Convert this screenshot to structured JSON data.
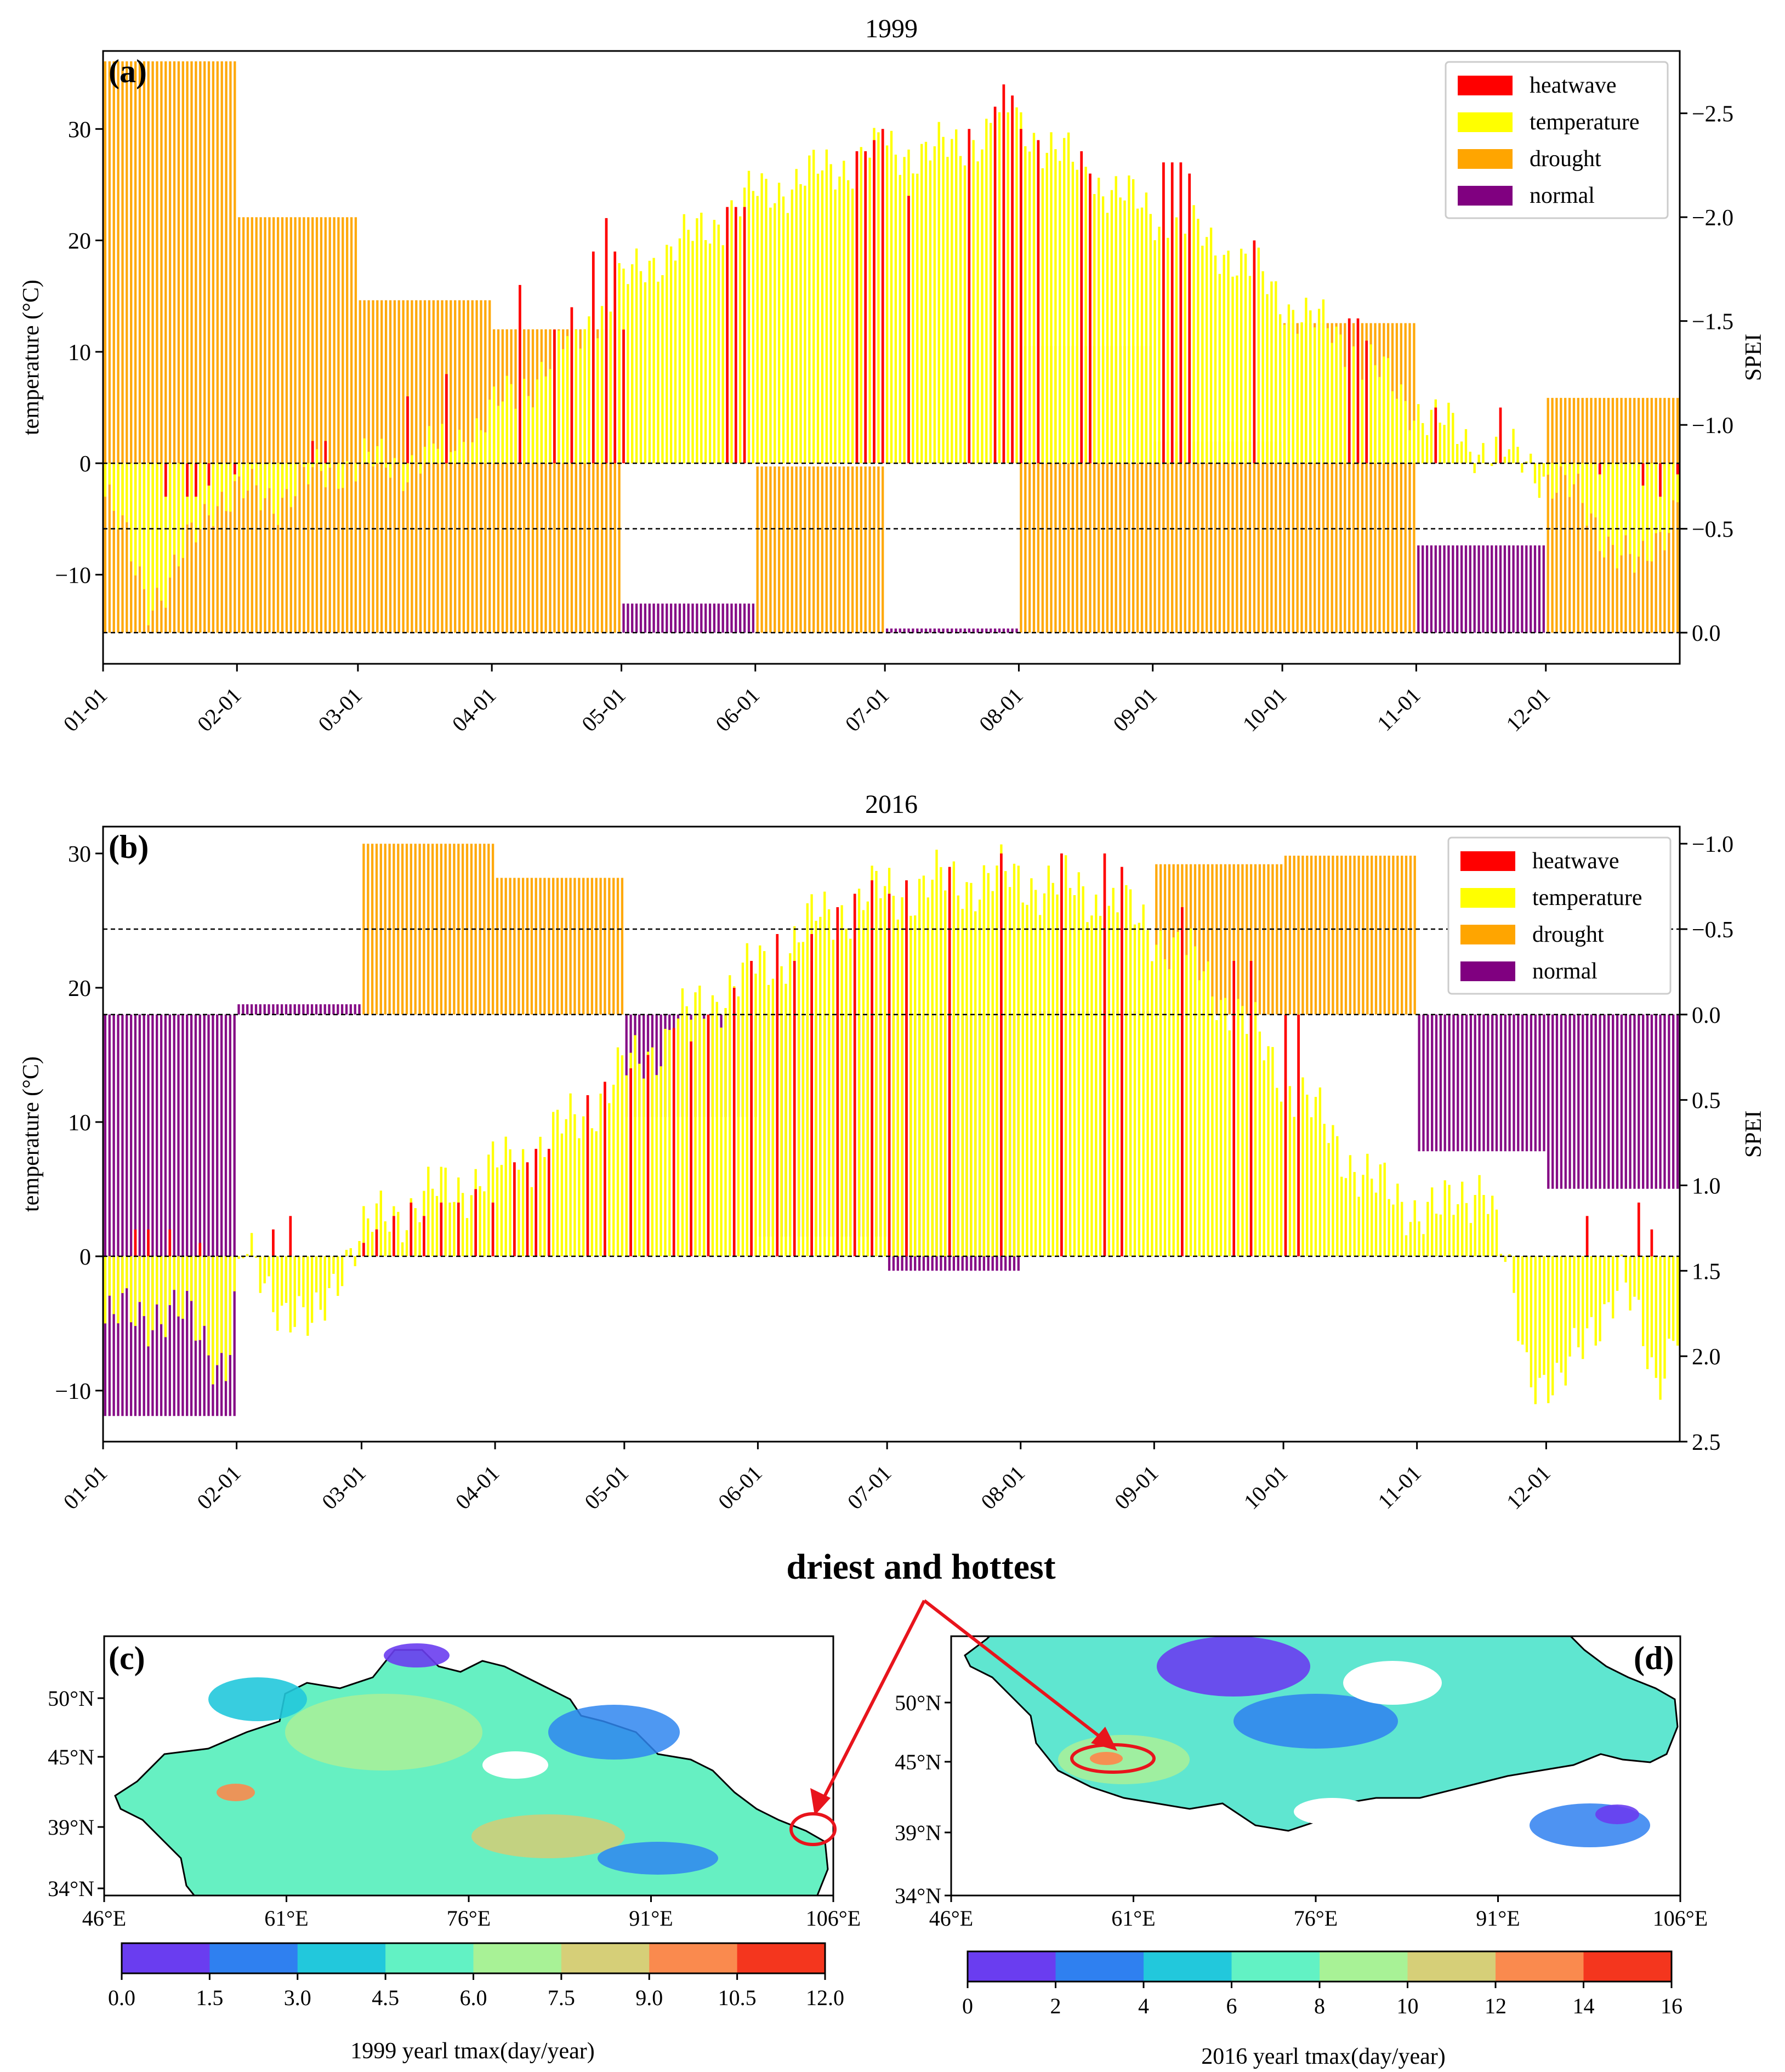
{
  "figure": {
    "suptitle": "driest and hottest"
  },
  "legend": {
    "items": [
      {
        "label": "heatwave",
        "color": "#ff0000"
      },
      {
        "label": "temperature",
        "color": "#ffff00"
      },
      {
        "label": "drought",
        "color": "#ffa500"
      },
      {
        "label": "normal",
        "color": "#800080"
      }
    ]
  },
  "chart_data": [
    {
      "panel_label": "(a)",
      "type": "bar",
      "title": "1999",
      "ylabel": "temperature (°C)",
      "y2label": "SPEI",
      "ylim": [
        -18,
        37
      ],
      "y2lim": [
        0.15,
        -2.8
      ],
      "y2_inverted": true,
      "yticks": [
        -10,
        0,
        10,
        20,
        30
      ],
      "y2ticks": [
        0.0,
        -0.5,
        -1.0,
        -1.5,
        -2.0,
        -2.5
      ],
      "y2ticklabels": [
        "0.0",
        "−0.5",
        "−1.0",
        "−1.5",
        "−2.0",
        "−2.5"
      ],
      "xticks": [
        "01-01",
        "02-01",
        "03-01",
        "04-01",
        "05-01",
        "06-01",
        "07-01",
        "08-01",
        "09-01",
        "10-01",
        "11-01",
        "12-01"
      ],
      "hlines_spei": [
        0.0,
        -0.5
      ],
      "hlines_temp": [
        0
      ],
      "legend_position": "upper right",
      "monthly_spei": [
        {
          "month": "01-01",
          "days": 31,
          "spei": -2.75,
          "status": "drought"
        },
        {
          "month": "02-01",
          "days": 28,
          "spei": -2.0,
          "status": "drought"
        },
        {
          "month": "03-01",
          "days": 31,
          "spei": -1.6,
          "status": "drought"
        },
        {
          "month": "04-01",
          "days": 30,
          "spei": -1.46,
          "status": "drought"
        },
        {
          "month": "05-01",
          "days": 31,
          "spei": -0.14,
          "status": "normal"
        },
        {
          "month": "06-01",
          "days": 30,
          "spei": -0.8,
          "status": "drought"
        },
        {
          "month": "07-01",
          "days": 31,
          "spei": -0.02,
          "status": "normal"
        },
        {
          "month": "08-01",
          "days": 31,
          "spei": -1.38,
          "status": "drought"
        },
        {
          "month": "09-01",
          "days": 30,
          "spei": -0.92,
          "status": "drought"
        },
        {
          "month": "10-01",
          "days": 31,
          "spei": -1.49,
          "status": "drought"
        },
        {
          "month": "11-01",
          "days": 30,
          "spei": -0.42,
          "status": "normal"
        },
        {
          "month": "12-01",
          "days": 31,
          "spei": -1.13,
          "status": "drought"
        }
      ],
      "daily_temp_anchors": [
        [
          0,
          -3
        ],
        [
          10,
          -12
        ],
        [
          15,
          -11
        ],
        [
          25,
          -3
        ],
        [
          40,
          -3
        ],
        [
          55,
          0
        ],
        [
          70,
          0
        ],
        [
          85,
          3
        ],
        [
          100,
          8
        ],
        [
          115,
          14
        ],
        [
          125,
          18
        ],
        [
          135,
          20
        ],
        [
          150,
          24
        ],
        [
          165,
          26
        ],
        [
          180,
          28
        ],
        [
          195,
          28
        ],
        [
          210,
          31
        ],
        [
          220,
          28
        ],
        [
          235,
          24
        ],
        [
          250,
          21
        ],
        [
          260,
          19
        ],
        [
          275,
          14
        ],
        [
          290,
          10
        ],
        [
          300,
          6
        ],
        [
          315,
          2
        ],
        [
          330,
          0
        ],
        [
          340,
          -3
        ],
        [
          355,
          -10
        ],
        [
          364,
          -3
        ]
      ],
      "heatwave_events": [
        [
          14,
          -3
        ],
        [
          19,
          -3
        ],
        [
          21,
          -3
        ],
        [
          24,
          -2
        ],
        [
          30,
          -1
        ],
        [
          48,
          2
        ],
        [
          51,
          2
        ],
        [
          70,
          6
        ],
        [
          79,
          8
        ],
        [
          96,
          16
        ],
        [
          104,
          12
        ],
        [
          108,
          14
        ],
        [
          113,
          19
        ],
        [
          116,
          22
        ],
        [
          118,
          19
        ],
        [
          120,
          12
        ],
        [
          144,
          23
        ],
        [
          146,
          23
        ],
        [
          148,
          23
        ],
        [
          174,
          28
        ],
        [
          176,
          28
        ],
        [
          178,
          29
        ],
        [
          180,
          30
        ],
        [
          186,
          24
        ],
        [
          200,
          30
        ],
        [
          206,
          32
        ],
        [
          208,
          34
        ],
        [
          210,
          33
        ],
        [
          212,
          30
        ],
        [
          216,
          29
        ],
        [
          226,
          28
        ],
        [
          228,
          26
        ],
        [
          245,
          27
        ],
        [
          247,
          27
        ],
        [
          249,
          27
        ],
        [
          251,
          26
        ],
        [
          266,
          20
        ],
        [
          288,
          13
        ],
        [
          290,
          13
        ],
        [
          292,
          11
        ],
        [
          308,
          5
        ],
        [
          323,
          5
        ],
        [
          346,
          -1
        ],
        [
          356,
          -2
        ],
        [
          360,
          -3
        ],
        [
          364,
          -1
        ]
      ]
    },
    {
      "panel_label": "(b)",
      "type": "bar",
      "title": "2016",
      "ylabel": "temperature (°C)",
      "y2label": "SPEI",
      "ylim": [
        -13.8,
        32
      ],
      "y2lim": [
        2.5,
        -1.1
      ],
      "y2_inverted": true,
      "yticks": [
        -10,
        0,
        10,
        20,
        30
      ],
      "y2ticks": [
        -1.0,
        -0.5,
        0.0,
        0.5,
        1.0,
        1.5,
        2.0,
        2.5
      ],
      "y2ticklabels": [
        "−1.0",
        "−0.5",
        "0.0",
        "0.5",
        "1.0",
        "1.5",
        "2.0",
        "2.5"
      ],
      "xticks": [
        "01-01",
        "02-01",
        "03-01",
        "04-01",
        "05-01",
        "06-01",
        "07-01",
        "08-01",
        "09-01",
        "10-01",
        "11-01",
        "12-01"
      ],
      "hlines_spei": [
        -0.5,
        0.0
      ],
      "hlines_temp": [
        0
      ],
      "legend_position": "upper right",
      "monthly_spei": [
        {
          "month": "01-01",
          "days": 31,
          "spei": 2.35,
          "status": "normal"
        },
        {
          "month": "02-01",
          "days": 29,
          "spei": -0.06,
          "status": "normal"
        },
        {
          "month": "03-01",
          "days": 31,
          "spei": -1.0,
          "status": "drought"
        },
        {
          "month": "04-01",
          "days": 30,
          "spei": -0.8,
          "status": "drought"
        },
        {
          "month": "05-01",
          "days": 31,
          "spei": 0.6,
          "status": "normal"
        },
        {
          "month": "06-01",
          "days": 30,
          "spei": 1.3,
          "status": "normal"
        },
        {
          "month": "07-01",
          "days": 31,
          "spei": 1.5,
          "status": "normal"
        },
        {
          "month": "08-01",
          "days": 31,
          "spei": -0.02,
          "status": "normal"
        },
        {
          "month": "09-01",
          "days": 30,
          "spei": -0.88,
          "status": "drought"
        },
        {
          "month": "10-01",
          "days": 31,
          "spei": -0.93,
          "status": "drought"
        },
        {
          "month": "11-01",
          "days": 30,
          "spei": 0.8,
          "status": "normal"
        },
        {
          "month": "12-01",
          "days": 31,
          "spei": 1.02,
          "status": "normal"
        }
      ],
      "daily_temp_anchors": [
        [
          0,
          -5
        ],
        [
          12,
          -4
        ],
        [
          20,
          -5
        ],
        [
          28,
          -8
        ],
        [
          32,
          0
        ],
        [
          40,
          -3
        ],
        [
          48,
          -6
        ],
        [
          55,
          0
        ],
        [
          65,
          3
        ],
        [
          80,
          5
        ],
        [
          95,
          7
        ],
        [
          105,
          9
        ],
        [
          115,
          12
        ],
        [
          125,
          15
        ],
        [
          140,
          19
        ],
        [
          155,
          22
        ],
        [
          165,
          25
        ],
        [
          180,
          27
        ],
        [
          200,
          28
        ],
        [
          215,
          28
        ],
        [
          228,
          27
        ],
        [
          245,
          24
        ],
        [
          258,
          20
        ],
        [
          270,
          15
        ],
        [
          282,
          10
        ],
        [
          295,
          5
        ],
        [
          310,
          3
        ],
        [
          320,
          6
        ],
        [
          330,
          -8
        ],
        [
          338,
          -10
        ],
        [
          345,
          -5
        ],
        [
          352,
          -2
        ],
        [
          360,
          -9
        ],
        [
          365,
          -5
        ]
      ],
      "heatwave_events": [
        [
          7,
          2
        ],
        [
          10,
          2
        ],
        [
          15,
          2
        ],
        [
          22,
          1
        ],
        [
          39,
          2
        ],
        [
          43,
          3
        ],
        [
          60,
          1
        ],
        [
          63,
          2
        ],
        [
          67,
          3
        ],
        [
          71,
          4
        ],
        [
          74,
          3
        ],
        [
          78,
          4
        ],
        [
          82,
          4
        ],
        [
          86,
          5
        ],
        [
          90,
          4
        ],
        [
          95,
          7
        ],
        [
          98,
          7
        ],
        [
          100,
          8
        ],
        [
          103,
          8
        ],
        [
          112,
          12
        ],
        [
          116,
          13
        ],
        [
          122,
          14
        ],
        [
          126,
          15
        ],
        [
          132,
          17
        ],
        [
          136,
          16
        ],
        [
          140,
          18
        ],
        [
          146,
          20
        ],
        [
          150,
          22
        ],
        [
          156,
          24
        ],
        [
          160,
          22
        ],
        [
          164,
          24
        ],
        [
          170,
          26
        ],
        [
          174,
          27
        ],
        [
          178,
          28
        ],
        [
          182,
          27
        ],
        [
          186,
          28
        ],
        [
          196,
          29
        ],
        [
          208,
          30
        ],
        [
          222,
          30
        ],
        [
          232,
          30
        ],
        [
          236,
          29
        ],
        [
          250,
          26
        ],
        [
          262,
          22
        ],
        [
          266,
          22
        ],
        [
          274,
          18
        ],
        [
          277,
          18
        ],
        [
          344,
          3
        ],
        [
          356,
          4
        ],
        [
          359,
          2
        ]
      ]
    },
    {
      "panel_label": "(c)",
      "type": "heatmap",
      "xticks": [
        "46°E",
        "61°E",
        "76°E",
        "91°E",
        "106°E"
      ],
      "yticks": [
        "34°N",
        "39°N",
        "45°N",
        "50°N"
      ],
      "colorbar_label": "1999 yearl tmax(day/year)",
      "colorbar_ticks": [
        "0.0",
        "1.5",
        "3.0",
        "4.5",
        "6.0",
        "7.5",
        "9.0",
        "10.5",
        "12.0"
      ],
      "colorbar_colors": [
        "#6a3df0",
        "#2f80f0",
        "#22c8dc",
        "#62f2c4",
        "#a8f296",
        "#d6cf78",
        "#fa8a4e",
        "#f4361e"
      ]
    },
    {
      "panel_label": "(d)",
      "type": "heatmap",
      "xticks": [
        "46°E",
        "61°E",
        "76°E",
        "91°E",
        "106°E"
      ],
      "yticks": [
        "34°N",
        "39°N",
        "45°N",
        "50°N"
      ],
      "colorbar_label": "2016 yearl tmax(day/year)",
      "colorbar_ticks": [
        "0",
        "2",
        "4",
        "6",
        "8",
        "10",
        "12",
        "14",
        "16"
      ],
      "colorbar_colors": [
        "#6a3df0",
        "#2f80f0",
        "#22c8dc",
        "#62f2c4",
        "#a8f296",
        "#d6cf78",
        "#fa8a4e",
        "#f4361e"
      ]
    }
  ]
}
